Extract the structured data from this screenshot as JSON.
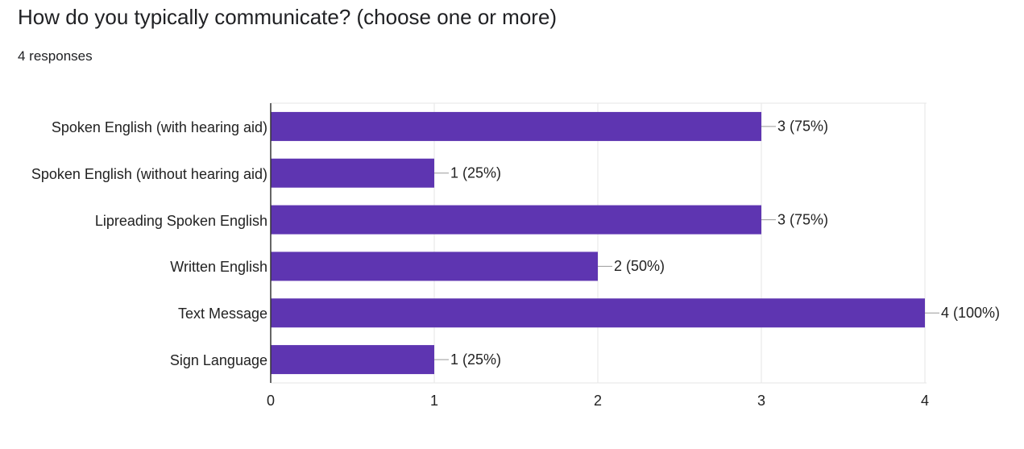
{
  "chart_data": {
    "type": "bar",
    "orientation": "horizontal",
    "title": "How do you typically communicate?  (choose one or more)",
    "subtitle": "4 responses",
    "categories": [
      "Spoken English (with hearing aid)",
      "Spoken English (without hearing aid)",
      "Lipreading Spoken English",
      "Written English",
      "Text Message",
      "Sign Language"
    ],
    "values": [
      3,
      1,
      3,
      2,
      4,
      1
    ],
    "value_labels": [
      "3 (75%)",
      "1 (25%)",
      "3 (75%)",
      "2 (50%)",
      "4 (100%)",
      "1 (25%)"
    ],
    "color": "#5e35b1",
    "xlim": [
      0,
      4
    ],
    "xticks": [
      0,
      1,
      2,
      3,
      4
    ],
    "grid": true
  }
}
